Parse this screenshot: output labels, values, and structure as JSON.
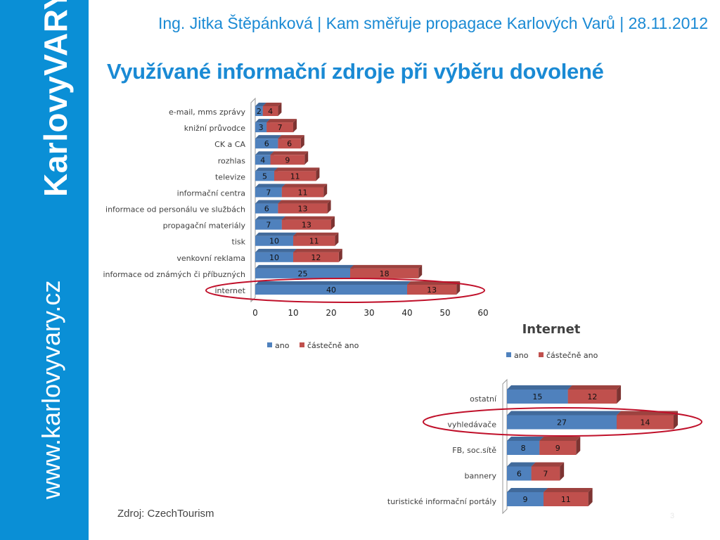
{
  "header": {
    "line": "Ing. Jitka Štěpánková | Kam směřuje propagace Karlových Varů | 28.11.2012",
    "title": "Využívané informační zdroje při výběru dovolené"
  },
  "sidebar": {
    "brand": "KarlovyVARY°",
    "website": "www.karlovyvary.cz",
    "color": "#0a8fd6"
  },
  "footer": {
    "source": "Zdroj: CzechTourism",
    "page": "3"
  },
  "chart_data": [
    {
      "type": "bar",
      "orientation": "horizontal",
      "stacked": true,
      "title": "",
      "categories": [
        "e-mail, mms zprávy",
        "knižní průvodce",
        "CK a CA",
        "rozhlas",
        "televize",
        "informační centra",
        "informace od personálu ve službách",
        "propagační materiály",
        "tisk",
        "venkovní reklama",
        "informace od známých či příbuzných",
        "internet"
      ],
      "series": [
        {
          "name": "ano",
          "color": "#4f81bd",
          "values": [
            2,
            3,
            6,
            4,
            5,
            7,
            6,
            7,
            10,
            10,
            25,
            40
          ]
        },
        {
          "name": "částečně ano",
          "color": "#c0504d",
          "values": [
            4,
            7,
            6,
            9,
            11,
            11,
            13,
            13,
            11,
            12,
            18,
            13
          ]
        }
      ],
      "xlim": [
        0,
        60
      ],
      "xticks": [
        0,
        10,
        20,
        30,
        40,
        50,
        60
      ],
      "legend": "bottom",
      "highlighted": "internet"
    },
    {
      "type": "bar",
      "orientation": "horizontal",
      "stacked": true,
      "title": "Internet",
      "categories": [
        "ostatní",
        "vyhledávače",
        "FB, soc.sítě",
        "bannery",
        "turistické informační portály"
      ],
      "series": [
        {
          "name": "ano",
          "color": "#4f81bd",
          "values": [
            15,
            27,
            8,
            6,
            9
          ]
        },
        {
          "name": "částečně ano",
          "color": "#c0504d",
          "values": [
            12,
            14,
            9,
            7,
            11
          ]
        }
      ],
      "legend": "top",
      "highlighted": "vyhledávače"
    }
  ]
}
